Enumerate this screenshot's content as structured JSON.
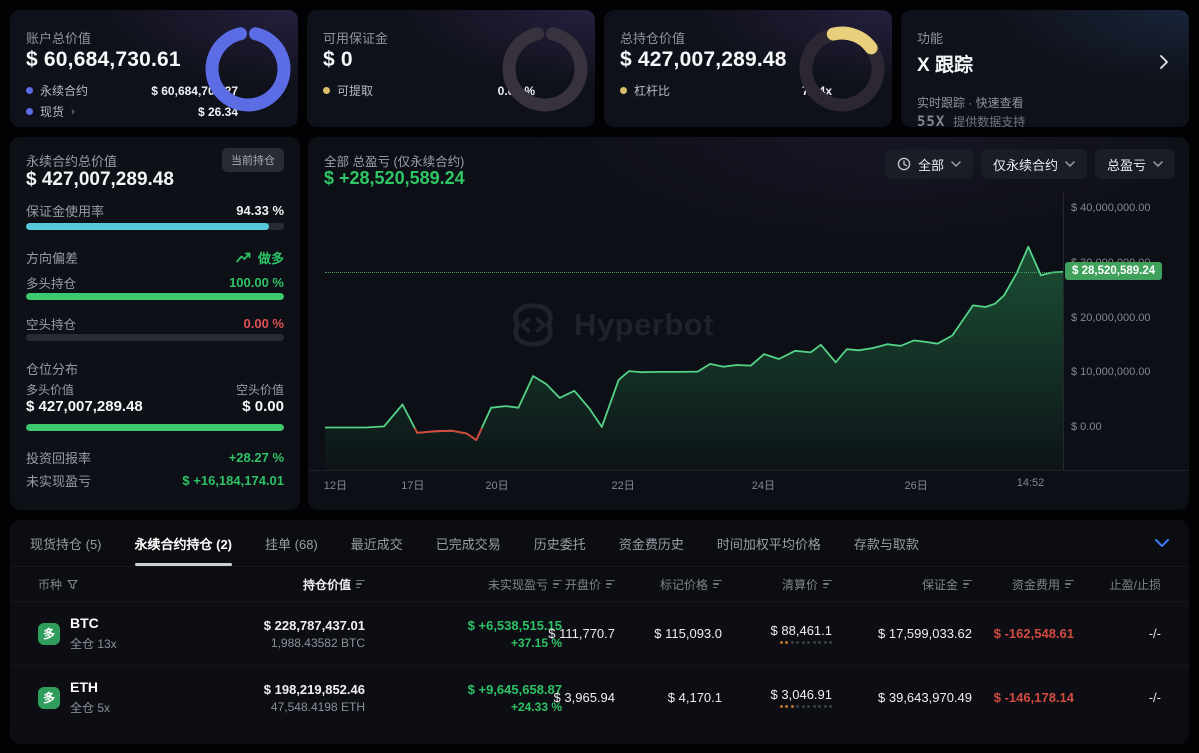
{
  "colors": {
    "green": "#2ec267",
    "red": "#e14f52",
    "funding_red": "#d24b41",
    "cyan_bar": "#56c8da",
    "green_bar": "#3cc96e",
    "blue_donut": "#5b6ce4",
    "gold": "#e7cf7c",
    "chart_line": "#54d287",
    "chart_red": "#d8453c",
    "tag_bg": "#40a15d",
    "tab_chevron_blue": "#3e7bf6"
  },
  "cards": {
    "account": {
      "label": "账户总价值",
      "value": "$ 60,684,730.61",
      "legend": [
        {
          "name": "永续合约",
          "value": "$ 60,684,704.27"
        },
        {
          "name": "现货",
          "chevron": "›",
          "value": "$ 26.34"
        }
      ],
      "donut": {
        "segments": [
          {
            "color": "#5b6ce4",
            "from": 12,
            "to": 348
          }
        ]
      }
    },
    "margin": {
      "label": "可用保证金",
      "value": "$ 0",
      "legend_name": "可提取",
      "legend_value": "0.00 %",
      "donut": {
        "segments": [
          {
            "color": "#38323e",
            "from": 12,
            "to": 348
          }
        ]
      }
    },
    "position": {
      "label": "总持仓价值",
      "value": "$ 427,007,289.48",
      "legend_name": "杠杆比",
      "legend_value": "7.04x",
      "donut": {
        "segments": [
          {
            "color": "#2c2733",
            "from": 60,
            "to": 338
          },
          {
            "color": "#e7cf7c",
            "from": 346,
            "to": 414
          }
        ]
      }
    },
    "feature": {
      "label": "功能",
      "title": "X 跟踪",
      "subtitle": "实时跟踪 · 快速查看",
      "provider_logo": "55X",
      "provider_text": "提供数据支持"
    }
  },
  "left_panel": {
    "title": "永续合约总价值",
    "badge": "当前持仓",
    "value": "$ 427,007,289.48",
    "margin_usage_label": "保证金使用率",
    "margin_usage": "94.33 %",
    "margin_usage_pct": 94.33,
    "bias_label": "方向偏差",
    "bias_value": "做多",
    "long_label": "多头持仓",
    "long_pct_text": "100.00 %",
    "long_pct": 100,
    "short_label": "空头持仓",
    "short_pct_text": "0.00 %",
    "short_pct": 0,
    "dist_label": "仓位分布",
    "long_value_label": "多头价值",
    "long_value": "$ 427,007,289.48",
    "short_value_label": "空头价值",
    "short_value": "$ 0.00",
    "roi_label": "投资回报率",
    "roi": "+28.27 %",
    "upnl_label": "未实现盈亏",
    "upnl": "$ +16,184,174.01"
  },
  "chart_panel": {
    "title": "全部 总盈亏 (仅永续合约)",
    "value": "$ +28,520,589.24",
    "filters": [
      "全部",
      "仅永续合约",
      "总盈亏"
    ],
    "watermark": "Hyperbot",
    "current_tag": "$ 28,520,589.24"
  },
  "chart_data": {
    "type": "area",
    "title": "全部 总盈亏 (仅永续合约)",
    "unit": "USD",
    "grid": false,
    "legend_position": "none",
    "ylim": [
      -7700000,
      43100000
    ],
    "y_ticks": [
      {
        "label": "$ 40,000,000.00",
        "value": 40000000
      },
      {
        "label": "$ 30,000,000.00",
        "value": 30000000
      },
      {
        "label": "$ 20,000,000.00",
        "value": 20000000
      },
      {
        "label": "$ 10,000,000.00",
        "value": 10000000
      },
      {
        "label": "$ 0.00",
        "value": 0
      }
    ],
    "x_ticks": [
      {
        "label": "12日",
        "pos": 0.014
      },
      {
        "label": "17日",
        "pos": 0.119
      },
      {
        "label": "20日",
        "pos": 0.233
      },
      {
        "label": "22日",
        "pos": 0.404
      },
      {
        "label": "24日",
        "pos": 0.594
      },
      {
        "label": "26日",
        "pos": 0.801
      },
      {
        "label": "14:52",
        "pos": 0.956
      }
    ],
    "current_value": 28520589.24,
    "points": [
      [
        0.0,
        100000
      ],
      [
        0.055,
        100000
      ],
      [
        0.08,
        300000
      ],
      [
        0.105,
        4300000
      ],
      [
        0.125,
        -900000
      ],
      [
        0.148,
        -600000
      ],
      [
        0.172,
        -500000
      ],
      [
        0.192,
        -1000000
      ],
      [
        0.205,
        -2200000
      ],
      [
        0.225,
        3700000
      ],
      [
        0.245,
        4000000
      ],
      [
        0.262,
        3700000
      ],
      [
        0.282,
        9500000
      ],
      [
        0.3,
        8000000
      ],
      [
        0.318,
        5500000
      ],
      [
        0.338,
        6800000
      ],
      [
        0.358,
        3600000
      ],
      [
        0.375,
        200000
      ],
      [
        0.398,
        8800000
      ],
      [
        0.412,
        10400000
      ],
      [
        0.428,
        10200000
      ],
      [
        0.452,
        10250000
      ],
      [
        0.478,
        10250000
      ],
      [
        0.505,
        10300000
      ],
      [
        0.522,
        11700000
      ],
      [
        0.54,
        11200000
      ],
      [
        0.558,
        11500000
      ],
      [
        0.577,
        11400000
      ],
      [
        0.595,
        13500000
      ],
      [
        0.615,
        12600000
      ],
      [
        0.637,
        14100000
      ],
      [
        0.658,
        13800000
      ],
      [
        0.672,
        15200000
      ],
      [
        0.692,
        12000000
      ],
      [
        0.707,
        14400000
      ],
      [
        0.723,
        14200000
      ],
      [
        0.742,
        14600000
      ],
      [
        0.762,
        15300000
      ],
      [
        0.78,
        15000000
      ],
      [
        0.798,
        16000000
      ],
      [
        0.815,
        15700000
      ],
      [
        0.83,
        15400000
      ],
      [
        0.85,
        16900000
      ],
      [
        0.878,
        22400000
      ],
      [
        0.895,
        22100000
      ],
      [
        0.908,
        22700000
      ],
      [
        0.92,
        24200000
      ],
      [
        0.937,
        28200000
      ],
      [
        0.953,
        33100000
      ],
      [
        0.97,
        27900000
      ],
      [
        0.985,
        28400000
      ],
      [
        1.0,
        28520589.24
      ]
    ]
  },
  "tabs": [
    {
      "label": "现货持仓 (5)",
      "active": false
    },
    {
      "label": "永续合约持仓 (2)",
      "active": true
    },
    {
      "label": "挂单 (68)",
      "active": false
    },
    {
      "label": "最近成交",
      "active": false
    },
    {
      "label": "已完成交易",
      "active": false
    },
    {
      "label": "历史委托",
      "active": false
    },
    {
      "label": "资金费历史",
      "active": false
    },
    {
      "label": "时间加权平均价格",
      "active": false
    },
    {
      "label": "存款与取款",
      "active": false
    }
  ],
  "table": {
    "headers": [
      {
        "label": "币种",
        "icon": "filter"
      },
      {
        "label": "持仓价值",
        "icon": "sort",
        "active": true
      },
      {
        "label": "未实现盈亏",
        "icon": "sort"
      },
      {
        "label": "开盘价",
        "icon": "sort"
      },
      {
        "label": "标记价格",
        "icon": "sort"
      },
      {
        "label": "清算价",
        "icon": "sort"
      },
      {
        "label": "保证金",
        "icon": "sort"
      },
      {
        "label": "资金费用",
        "icon": "sort"
      },
      {
        "label": "止盈/止损",
        "icon": "none"
      }
    ],
    "rows": [
      {
        "symbol": "BTC",
        "side": "多",
        "mode": "全仓 13x",
        "value": "$ 228,787,437.01",
        "amount": "1,988.43582 BTC",
        "upnl": "$ +6,538,515.15",
        "upnl_pct": "+37.15 %",
        "open": "$ 111,770.7",
        "mark": "$ 115,093.0",
        "liq": "$ 88,461.1",
        "liq_dots_on": 2,
        "liq_dots_total": 10,
        "margin": "$ 17,599,033.62",
        "funding": "$ -162,548.61",
        "tpsl": "-/-"
      },
      {
        "symbol": "ETH",
        "side": "多",
        "mode": "全仓 5x",
        "value": "$ 198,219,852.46",
        "amount": "47,548.4198 ETH",
        "upnl": "$ +9,645,658.87",
        "upnl_pct": "+24.33 %",
        "open": "$ 3,965.94",
        "mark": "$ 4,170.1",
        "liq": "$ 3,046.91",
        "liq_dots_on": 3,
        "liq_dots_total": 10,
        "margin": "$ 39,643,970.49",
        "funding": "$ -146,178.14",
        "tpsl": "-/-"
      }
    ]
  }
}
